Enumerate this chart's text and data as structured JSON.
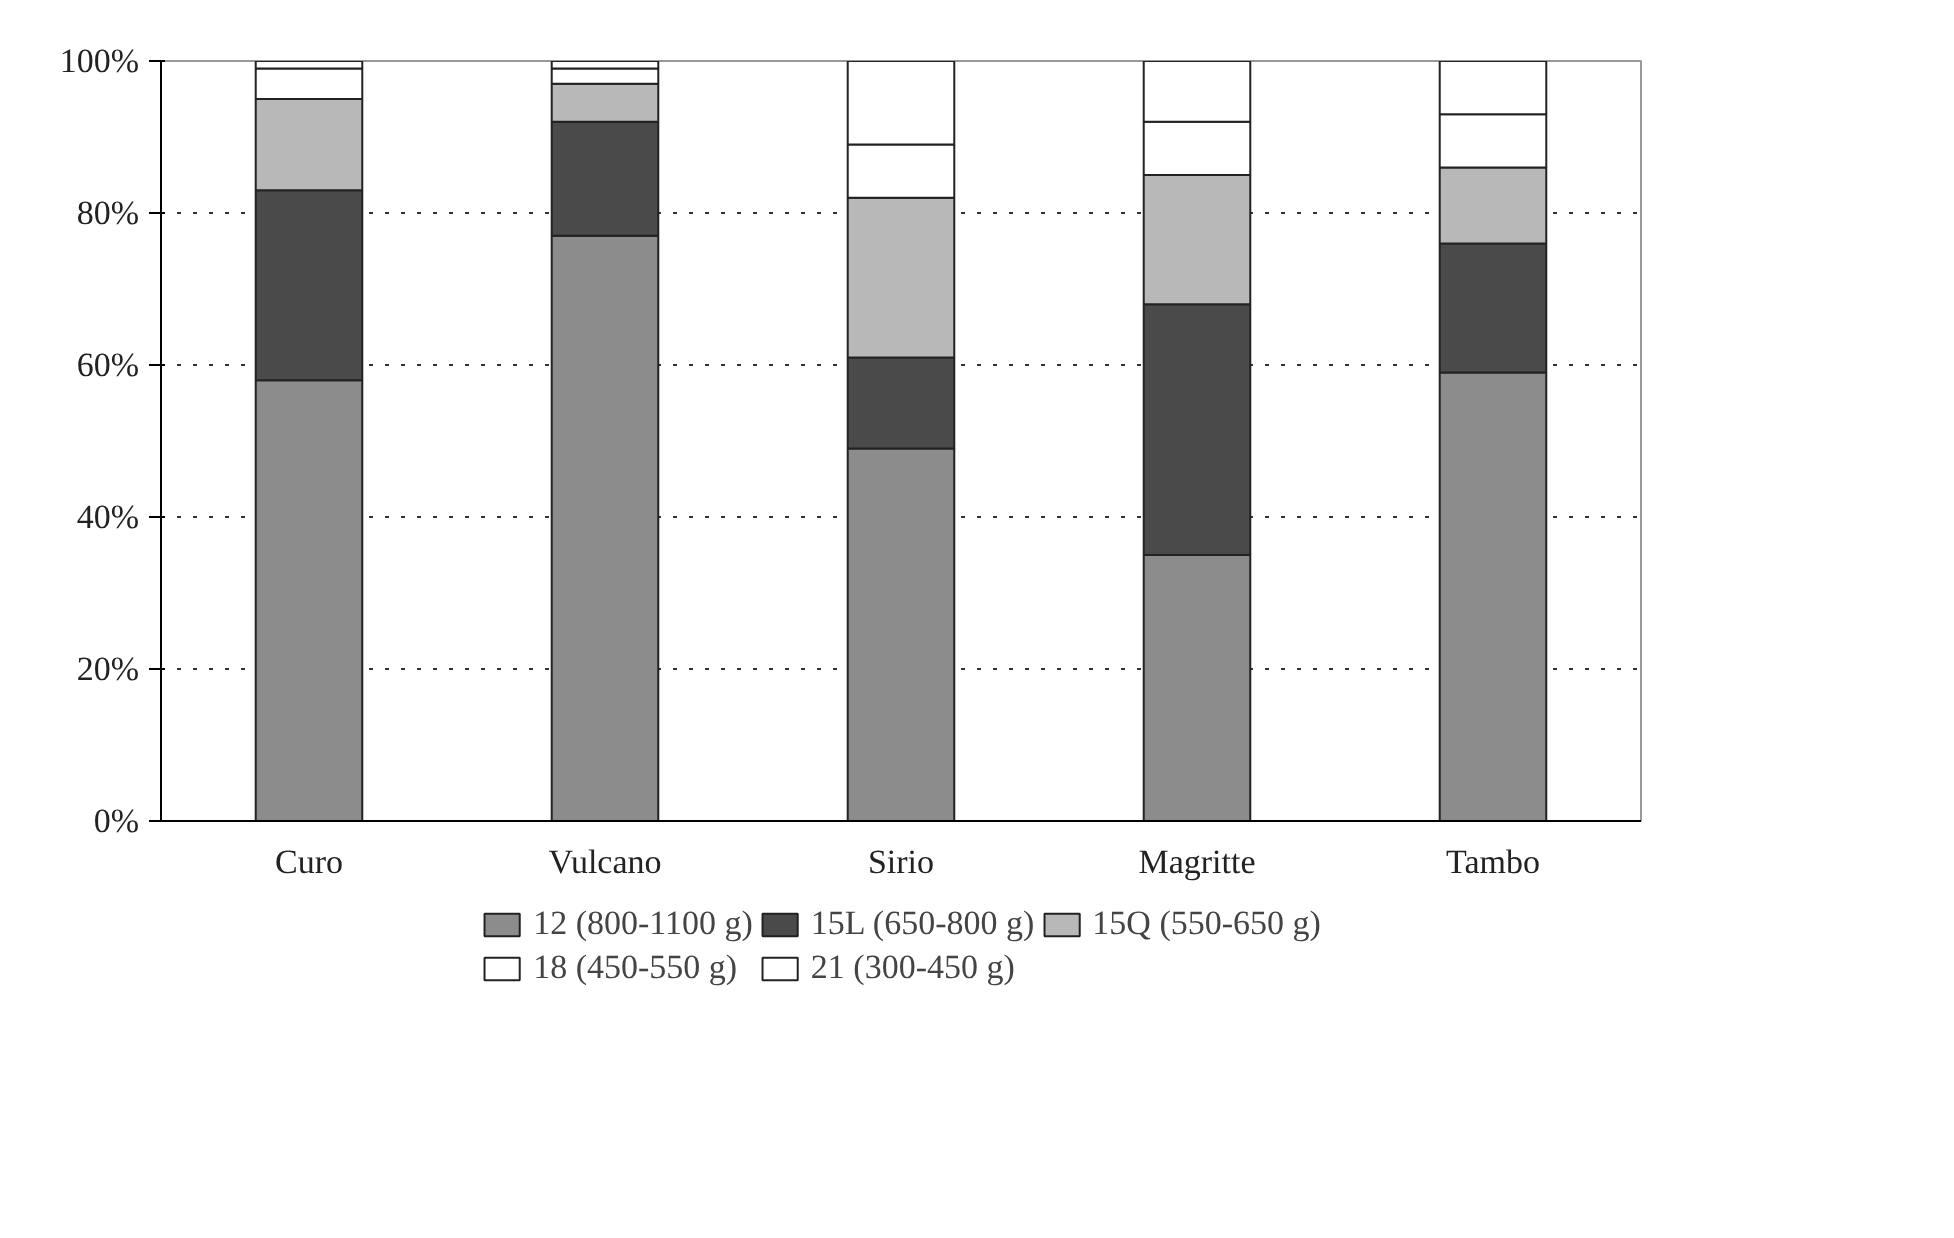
{
  "chart_data": {
    "type": "bar",
    "stacked": true,
    "categories": [
      "Curo",
      "Vulcano",
      "Sirio",
      "Magritte",
      "Tambo"
    ],
    "series": [
      {
        "name": "12 (800-1100 g)",
        "color": "#8c8c8c",
        "values": [
          58,
          77,
          49,
          35,
          59
        ]
      },
      {
        "name": "15L (650-800 g)",
        "color": "#4a4a4a",
        "values": [
          25,
          15,
          12,
          33,
          17
        ]
      },
      {
        "name": "15Q (550-650 g)",
        "color": "#b8b8b8",
        "values": [
          12,
          5,
          21,
          17,
          10
        ]
      },
      {
        "name": "18 (450-550 g)",
        "color": "#ffffff",
        "values": [
          4,
          2,
          7,
          7,
          7
        ]
      },
      {
        "name": "21 (300-450 g)",
        "color": "#ffffff",
        "values": [
          1,
          1,
          11,
          8,
          7
        ]
      }
    ],
    "ylim": [
      0,
      100
    ],
    "yticks": [
      {
        "value": 0,
        "label": "0%"
      },
      {
        "value": 20,
        "label": "20%"
      },
      {
        "value": 40,
        "label": "40%"
      },
      {
        "value": 60,
        "label": "60%"
      },
      {
        "value": 80,
        "label": "80%"
      },
      {
        "value": 100,
        "label": "100%"
      }
    ],
    "grid": "y",
    "legend": "bottom"
  }
}
